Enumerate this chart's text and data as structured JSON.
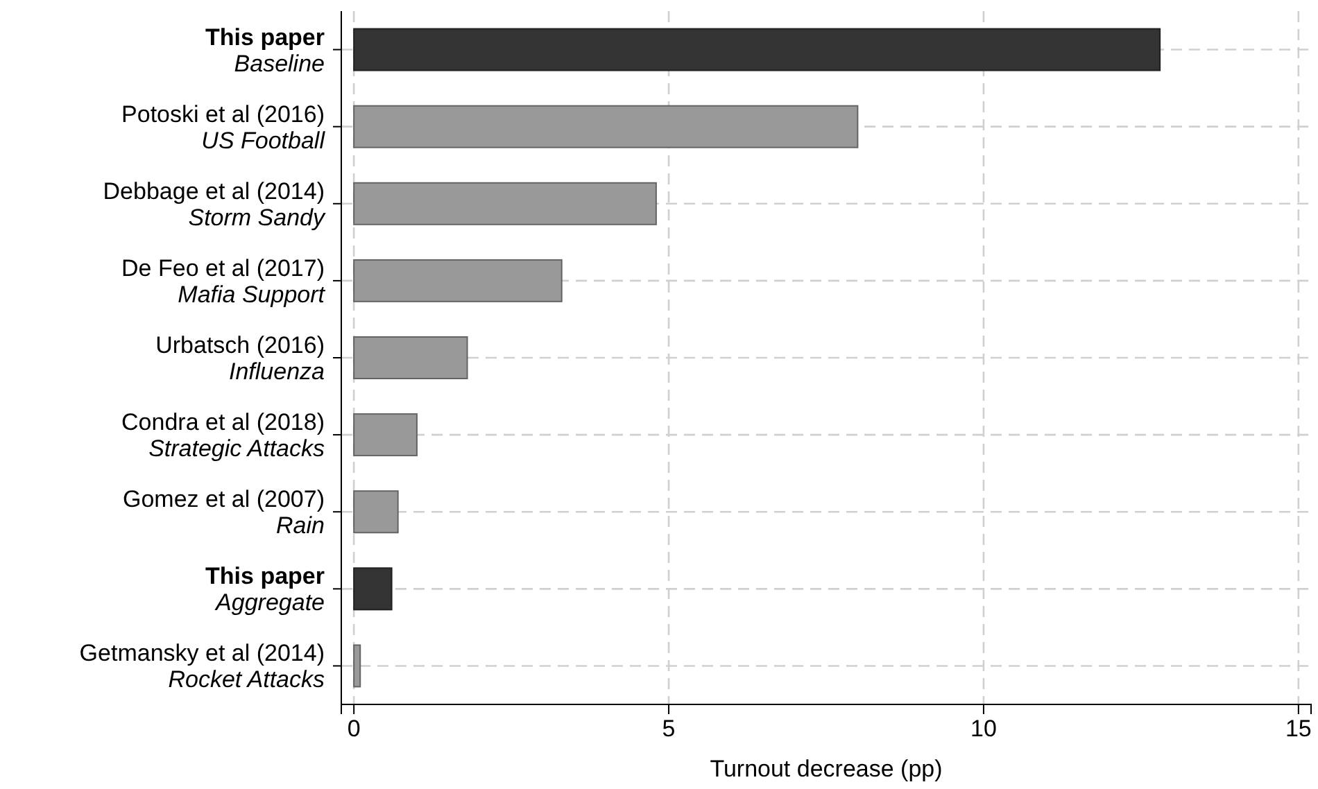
{
  "chart_data": {
    "type": "bar",
    "orientation": "horizontal",
    "xlabel": "Turnout decrease (pp)",
    "categories": [
      "This paper\nBaseline",
      "Potoski et al (2016)\nUS Football",
      "Debbage et al (2014)\nStorm Sandy",
      "De Feo et al (2017)\nMafia Support",
      "Urbatsch (2016)\nInfluenza",
      "Condra et al (2018)\nStrategic Attacks",
      "Gomez et al (2007)\nRain",
      "This paper\nAggregate",
      "Getmansky et al (2014)\nRocket Attacks"
    ],
    "values": [
      12.8,
      8.0,
      4.8,
      3.3,
      1.8,
      1.0,
      0.7,
      0.6,
      0.1
    ],
    "colors": [
      "#333333",
      "#999999",
      "#999999",
      "#999999",
      "#999999",
      "#999999",
      "#999999",
      "#333333",
      "#999999"
    ],
    "xlim": [
      -0.2,
      15.2
    ],
    "xticks": [
      0,
      5,
      10,
      15
    ],
    "grid": true
  }
}
